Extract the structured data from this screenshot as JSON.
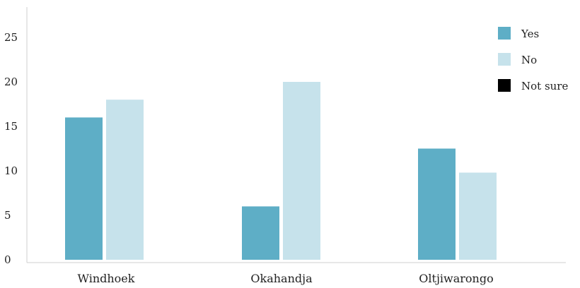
{
  "chart_data": {
    "type": "bar",
    "categories": [
      "Windhoek",
      "Okahandja",
      "Oltjiwarongo"
    ],
    "series": [
      {
        "name": "Yes",
        "values": [
          16,
          6,
          12.5
        ],
        "color": "#5eaec6"
      },
      {
        "name": "No",
        "values": [
          18,
          20,
          9.8
        ],
        "color": "#c6e2eb"
      },
      {
        "name": "Not sure",
        "values": [
          0,
          0,
          0
        ],
        "color": "#000000"
      }
    ],
    "y_ticks": [
      "0",
      "5",
      "10",
      "15",
      "20",
      "25"
    ],
    "ylim": [
      0,
      27
    ],
    "legend_position": "top-right",
    "grid": false,
    "title": "",
    "xlabel": "",
    "ylabel": ""
  }
}
